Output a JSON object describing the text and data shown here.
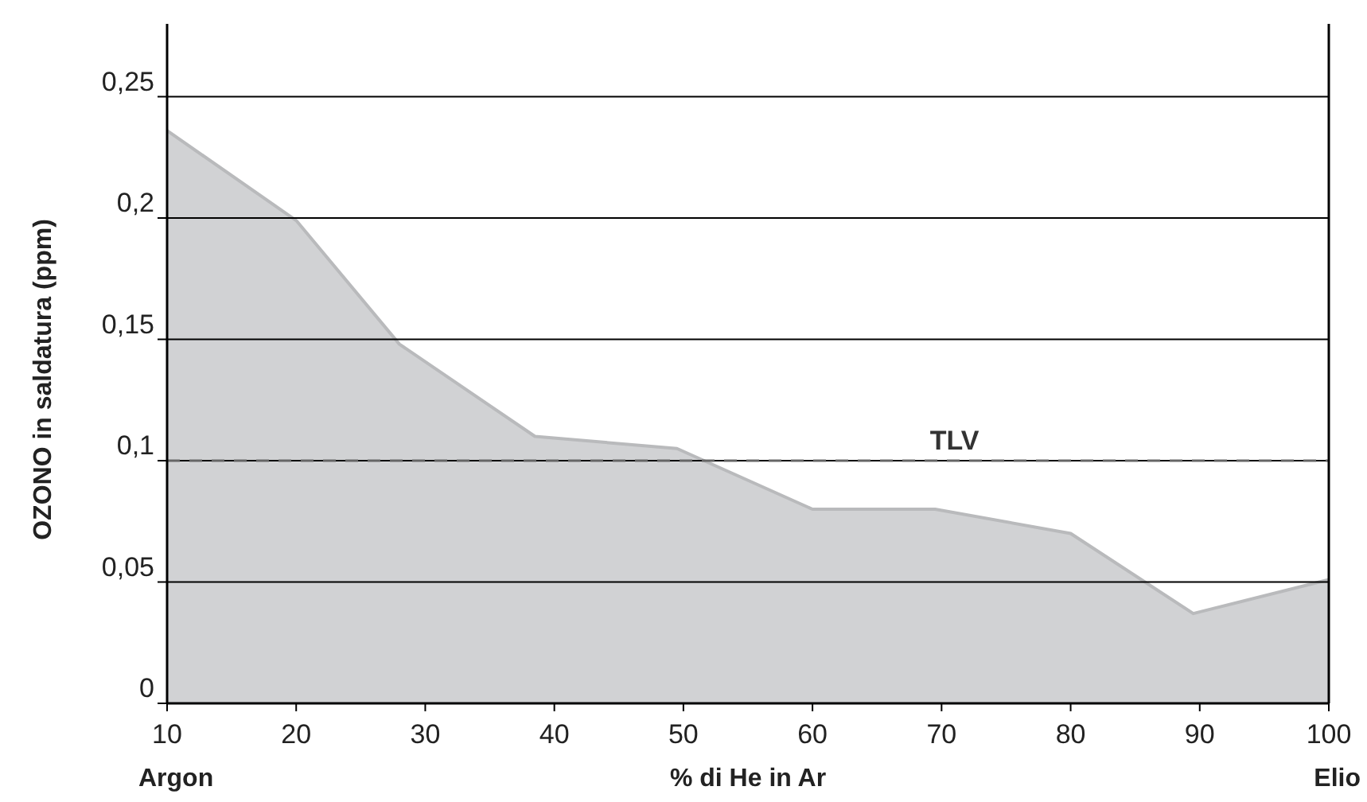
{
  "chart_data": {
    "type": "area",
    "xlabel": "% di He in Ar",
    "ylabel": "OZONO in saldatura (ppm)",
    "x": [
      10,
      20,
      28,
      38.5,
      49.5,
      60,
      69.5,
      80,
      89.5,
      100
    ],
    "series": [
      {
        "color": "#d1d2d4",
        "values": [
          0.236,
          0.199,
          0.148,
          0.11,
          0.105,
          0.08,
          0.08,
          0.07,
          0.037,
          0.051
        ]
      }
    ],
    "xlim": [
      10,
      100
    ],
    "ylim": [
      0,
      0.28
    ],
    "xticks": [
      10,
      20,
      30,
      40,
      50,
      60,
      70,
      80,
      90,
      100
    ],
    "yticks": [
      0,
      {
        "value": 0.05,
        "label": "0,05"
      },
      {
        "value": 0.1,
        "label": "0,1"
      },
      {
        "value": 0.15,
        "label": "0,15"
      },
      {
        "value": 0.2,
        "label": "0,2"
      },
      {
        "value": 0.25,
        "label": "0,25"
      }
    ],
    "grid": "y",
    "ref_lines": [
      {
        "axis": "y",
        "value": 0.1,
        "label": "TLV",
        "line_style": "dashed",
        "color": "#666666"
      }
    ],
    "annotations": [
      {
        "text": "Argon",
        "x": 10,
        "y": 0
      },
      {
        "text": "Elio",
        "x": 100,
        "y": 0
      }
    ]
  }
}
